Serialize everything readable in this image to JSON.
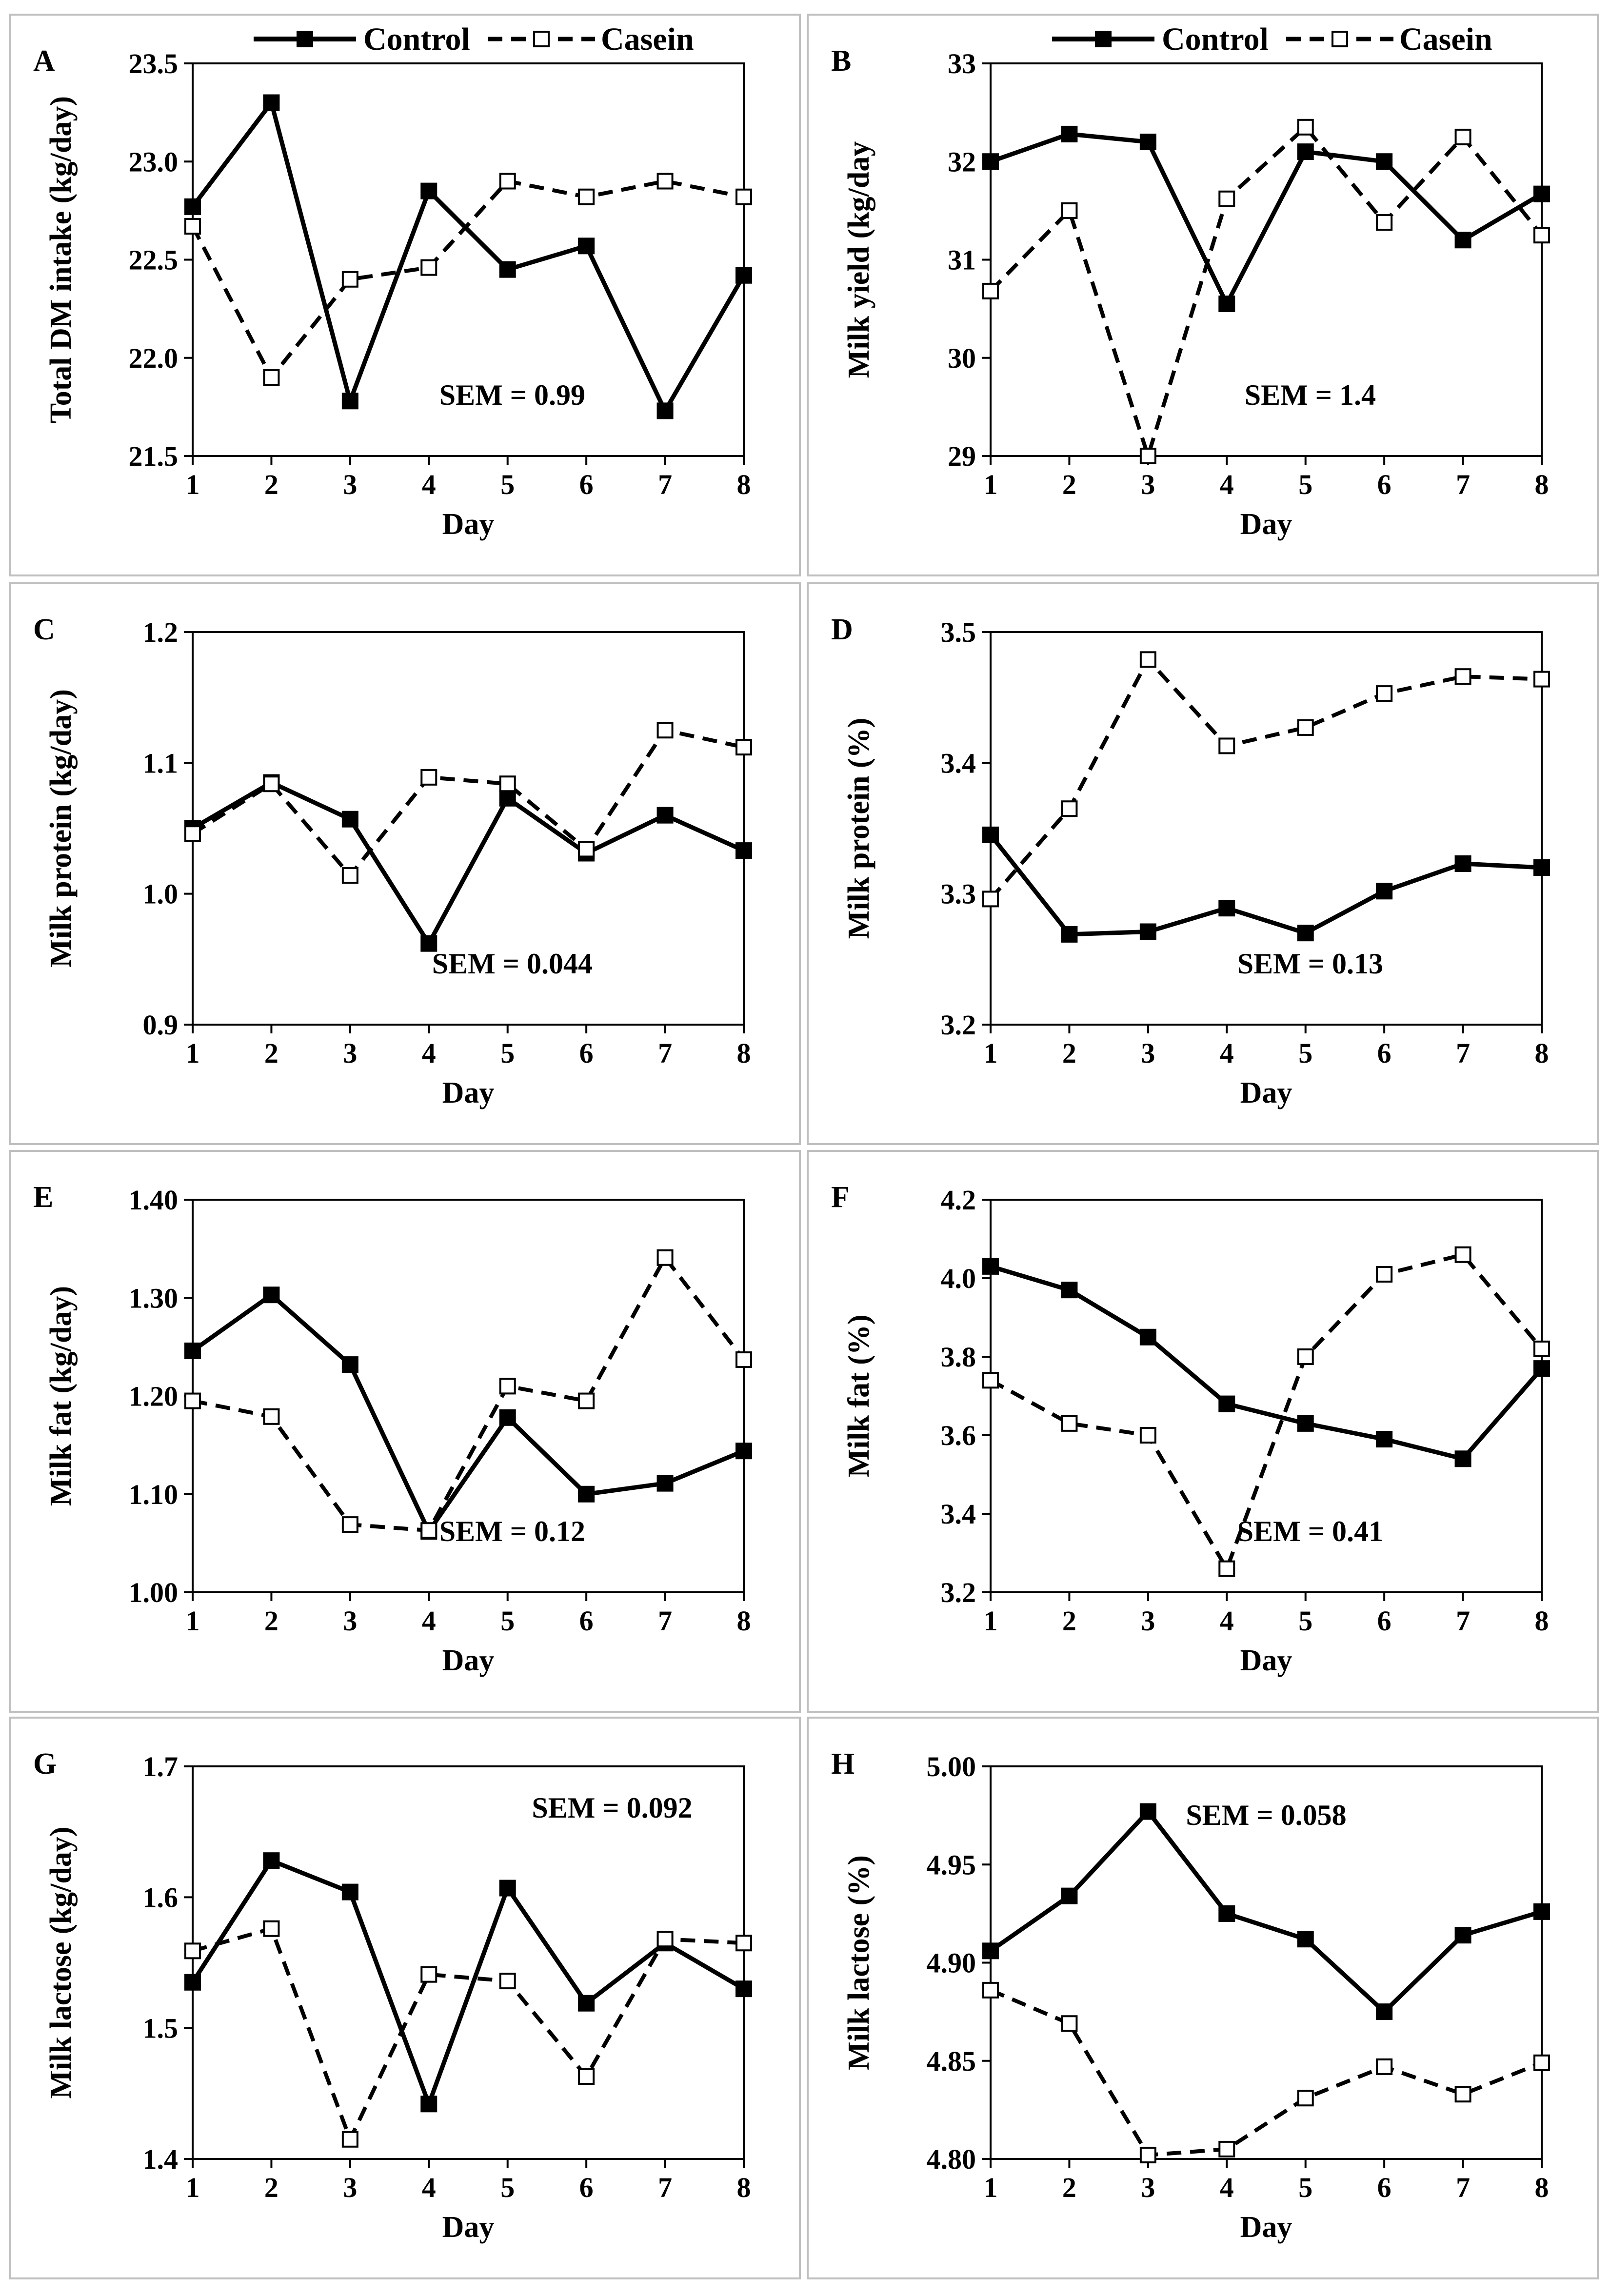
{
  "legend": {
    "items": [
      {
        "name": "Control",
        "style": "solid-filled"
      },
      {
        "name": "Casein",
        "style": "dashed-open"
      }
    ]
  },
  "chart_data": [
    {
      "type": "line",
      "panel": "A",
      "xlabel": "Day",
      "ylabel": "Total DM intake (kg/day)",
      "x": [
        1,
        2,
        3,
        4,
        5,
        6,
        7,
        8
      ],
      "ylim": [
        21.5,
        23.5
      ],
      "yticks": [
        "21.5",
        "22.0",
        "22.5",
        "23.0",
        "23.5"
      ],
      "series": [
        {
          "name": "Control",
          "values": [
            22.77,
            23.3,
            21.78,
            22.85,
            22.45,
            22.57,
            21.73,
            22.42
          ]
        },
        {
          "name": "Casein",
          "values": [
            22.67,
            21.9,
            22.4,
            22.46,
            22.9,
            22.82,
            22.9,
            22.82
          ]
        }
      ],
      "sem": "SEM = 0.99",
      "sem_pos": "bottom-center"
    },
    {
      "type": "line",
      "panel": "B",
      "xlabel": "Day",
      "ylabel": "Milk yield (kg/day",
      "x": [
        1,
        2,
        3,
        4,
        5,
        6,
        7,
        8
      ],
      "ylim": [
        29,
        33
      ],
      "yticks": [
        "29",
        "30",
        "31",
        "32",
        "33"
      ],
      "series": [
        {
          "name": "Control",
          "values": [
            32.0,
            32.28,
            32.2,
            30.55,
            32.1,
            32.0,
            31.2,
            31.67
          ]
        },
        {
          "name": "Casein",
          "values": [
            30.68,
            31.5,
            29.0,
            31.62,
            32.35,
            31.38,
            32.25,
            31.25
          ]
        }
      ],
      "sem": "SEM = 1.4",
      "sem_pos": "bottom-center"
    },
    {
      "type": "line",
      "panel": "C",
      "xlabel": "Day",
      "ylabel": "Milk protein (kg/day)",
      "x": [
        1,
        2,
        3,
        4,
        5,
        6,
        7,
        8
      ],
      "ylim": [
        0.9,
        1.2
      ],
      "yticks": [
        "0.9",
        "1.0",
        "1.1",
        "1.2"
      ],
      "series": [
        {
          "name": "Control",
          "values": [
            1.05,
            1.085,
            1.057,
            0.962,
            1.073,
            1.031,
            1.06,
            1.033
          ]
        },
        {
          "name": "Casein",
          "values": [
            1.046,
            1.084,
            1.014,
            1.089,
            1.084,
            1.034,
            1.125,
            1.112
          ]
        }
      ],
      "sem": "SEM = 0.044",
      "sem_pos": "bottom-center"
    },
    {
      "type": "line",
      "panel": "D",
      "xlabel": "Day",
      "ylabel": "Milk protein (%)",
      "x": [
        1,
        2,
        3,
        4,
        5,
        6,
        7,
        8
      ],
      "ylim": [
        3.2,
        3.5
      ],
      "yticks": [
        "3.2",
        "3.3",
        "3.4",
        "3.5"
      ],
      "series": [
        {
          "name": "Control",
          "values": [
            3.345,
            3.269,
            3.271,
            3.289,
            3.27,
            3.302,
            3.323,
            3.32
          ]
        },
        {
          "name": "Casein",
          "values": [
            3.296,
            3.365,
            3.479,
            3.413,
            3.427,
            3.453,
            3.466,
            3.464
          ]
        }
      ],
      "sem": "SEM = 0.13",
      "sem_pos": "bottom-center"
    },
    {
      "type": "line",
      "panel": "E",
      "xlabel": "Day",
      "ylabel": "Milk fat (kg/day)",
      "x": [
        1,
        2,
        3,
        4,
        5,
        6,
        7,
        8
      ],
      "ylim": [
        1.0,
        1.4
      ],
      "yticks": [
        "1.00",
        "1.10",
        "1.20",
        "1.30",
        "1.40"
      ],
      "series": [
        {
          "name": "Control",
          "values": [
            1.246,
            1.303,
            1.232,
            1.062,
            1.178,
            1.1,
            1.111,
            1.144
          ]
        },
        {
          "name": "Casein",
          "values": [
            1.195,
            1.179,
            1.069,
            1.063,
            1.21,
            1.195,
            1.341,
            1.237
          ]
        }
      ],
      "sem": "SEM = 0.12",
      "sem_pos": "bottom-center"
    },
    {
      "type": "line",
      "panel": "F",
      "xlabel": "Day",
      "ylabel": "Milk fat (%)",
      "x": [
        1,
        2,
        3,
        4,
        5,
        6,
        7,
        8
      ],
      "ylim": [
        3.2,
        4.2
      ],
      "yticks": [
        "3.2",
        "3.4",
        "3.6",
        "3.8",
        "4.0",
        "4.2"
      ],
      "series": [
        {
          "name": "Control",
          "values": [
            4.03,
            3.97,
            3.85,
            3.68,
            3.63,
            3.59,
            3.54,
            3.77
          ]
        },
        {
          "name": "Casein",
          "values": [
            3.74,
            3.63,
            3.6,
            3.26,
            3.8,
            4.01,
            4.06,
            3.82
          ]
        }
      ],
      "sem": "SEM = 0.41",
      "sem_pos": "bottom-center"
    },
    {
      "type": "line",
      "panel": "G",
      "xlabel": "Day",
      "ylabel": "Milk lactose (kg/day)",
      "x": [
        1,
        2,
        3,
        4,
        5,
        6,
        7,
        8
      ],
      "ylim": [
        1.4,
        1.7
      ],
      "yticks": [
        "1.4",
        "1.5",
        "1.6",
        "1.7"
      ],
      "series": [
        {
          "name": "Control",
          "values": [
            1.535,
            1.628,
            1.604,
            1.442,
            1.607,
            1.519,
            1.565,
            1.53
          ]
        },
        {
          "name": "Casein",
          "values": [
            1.559,
            1.576,
            1.415,
            1.541,
            1.536,
            1.463,
            1.568,
            1.565
          ]
        }
      ],
      "sem": "SEM = 0.092",
      "sem_pos": "top-right"
    },
    {
      "type": "line",
      "panel": "H",
      "xlabel": "Day",
      "ylabel": "Milk lactose (%)",
      "x": [
        1,
        2,
        3,
        4,
        5,
        6,
        7,
        8
      ],
      "ylim": [
        4.8,
        5.0
      ],
      "yticks": [
        "4.80",
        "4.85",
        "4.90",
        "4.95",
        "5.00"
      ],
      "series": [
        {
          "name": "Control",
          "values": [
            4.906,
            4.934,
            4.977,
            4.925,
            4.912,
            4.875,
            4.914,
            4.926
          ]
        },
        {
          "name": "Casein",
          "values": [
            4.886,
            4.869,
            4.802,
            4.805,
            4.831,
            4.847,
            4.833,
            4.849
          ]
        }
      ],
      "sem": "SEM = 0.058",
      "sem_pos": "top-center"
    }
  ]
}
